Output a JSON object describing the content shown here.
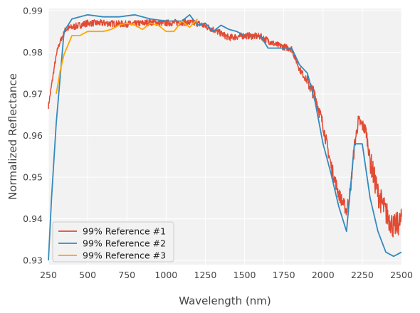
{
  "chart_data": {
    "type": "line",
    "xlabel": "Wavelength (nm)",
    "ylabel": "Normalized Reflectance",
    "xlim": [
      250,
      2500
    ],
    "ylim": [
      0.929,
      0.9905
    ],
    "xticks": [
      250,
      500,
      750,
      1000,
      1250,
      1500,
      1750,
      2000,
      2250,
      2500
    ],
    "yticks": [
      0.93,
      0.94,
      0.95,
      0.96,
      0.97,
      0.98,
      0.99
    ],
    "grid": true,
    "legend_position": "lower-left",
    "series": [
      {
        "name": "99% Reference #1",
        "color": "#e24a33",
        "noisy": true,
        "x": [
          250,
          270,
          290,
          310,
          330,
          360,
          400,
          450,
          500,
          600,
          700,
          800,
          900,
          1000,
          1100,
          1200,
          1300,
          1400,
          1500,
          1600,
          1700,
          1800,
          1850,
          1900,
          1950,
          2000,
          2050,
          2100,
          2150,
          2175,
          2200,
          2225,
          2250,
          2275,
          2300,
          2350,
          2400,
          2450,
          2500
        ],
        "y": [
          0.967,
          0.972,
          0.977,
          0.981,
          0.983,
          0.9855,
          0.986,
          0.9865,
          0.987,
          0.987,
          0.9868,
          0.9868,
          0.9872,
          0.987,
          0.9872,
          0.987,
          0.9855,
          0.9835,
          0.984,
          0.9838,
          0.9818,
          0.9808,
          0.976,
          0.973,
          0.9695,
          0.9625,
          0.953,
          0.946,
          0.942,
          0.947,
          0.9575,
          0.9635,
          0.9625,
          0.961,
          0.954,
          0.946,
          0.9415,
          0.938,
          0.9395
        ]
      },
      {
        "name": "99% Reference #2",
        "color": "#348abd",
        "noisy": false,
        "x": [
          250,
          270,
          300,
          350,
          400,
          500,
          600,
          700,
          800,
          900,
          1000,
          1100,
          1150,
          1200,
          1250,
          1300,
          1350,
          1400,
          1450,
          1500,
          1600,
          1650,
          1700,
          1750,
          1800,
          1850,
          1900,
          1950,
          2000,
          2050,
          2100,
          2150,
          2200,
          2250,
          2300,
          2350,
          2400,
          2450,
          2500
        ],
        "y": [
          0.93,
          0.945,
          0.963,
          0.985,
          0.988,
          0.989,
          0.9885,
          0.9885,
          0.989,
          0.988,
          0.9875,
          0.9875,
          0.989,
          0.9865,
          0.987,
          0.985,
          0.9865,
          0.9855,
          0.985,
          0.984,
          0.984,
          0.981,
          0.981,
          0.981,
          0.981,
          0.977,
          0.975,
          0.968,
          0.958,
          0.951,
          0.943,
          0.937,
          0.958,
          0.958,
          0.945,
          0.937,
          0.932,
          0.931,
          0.932
        ]
      },
      {
        "name": "99% Reference #3",
        "color": "#ffa500",
        "noisy": false,
        "x": [
          300,
          325,
          350,
          400,
          450,
          500,
          550,
          600,
          650,
          700,
          750,
          800,
          850,
          900,
          950,
          1000,
          1050,
          1100,
          1150,
          1200
        ],
        "y": [
          0.97,
          0.9755,
          0.9795,
          0.984,
          0.984,
          0.985,
          0.985,
          0.985,
          0.9855,
          0.9865,
          0.987,
          0.9865,
          0.9855,
          0.987,
          0.9865,
          0.985,
          0.985,
          0.9875,
          0.986,
          0.988
        ]
      }
    ]
  }
}
